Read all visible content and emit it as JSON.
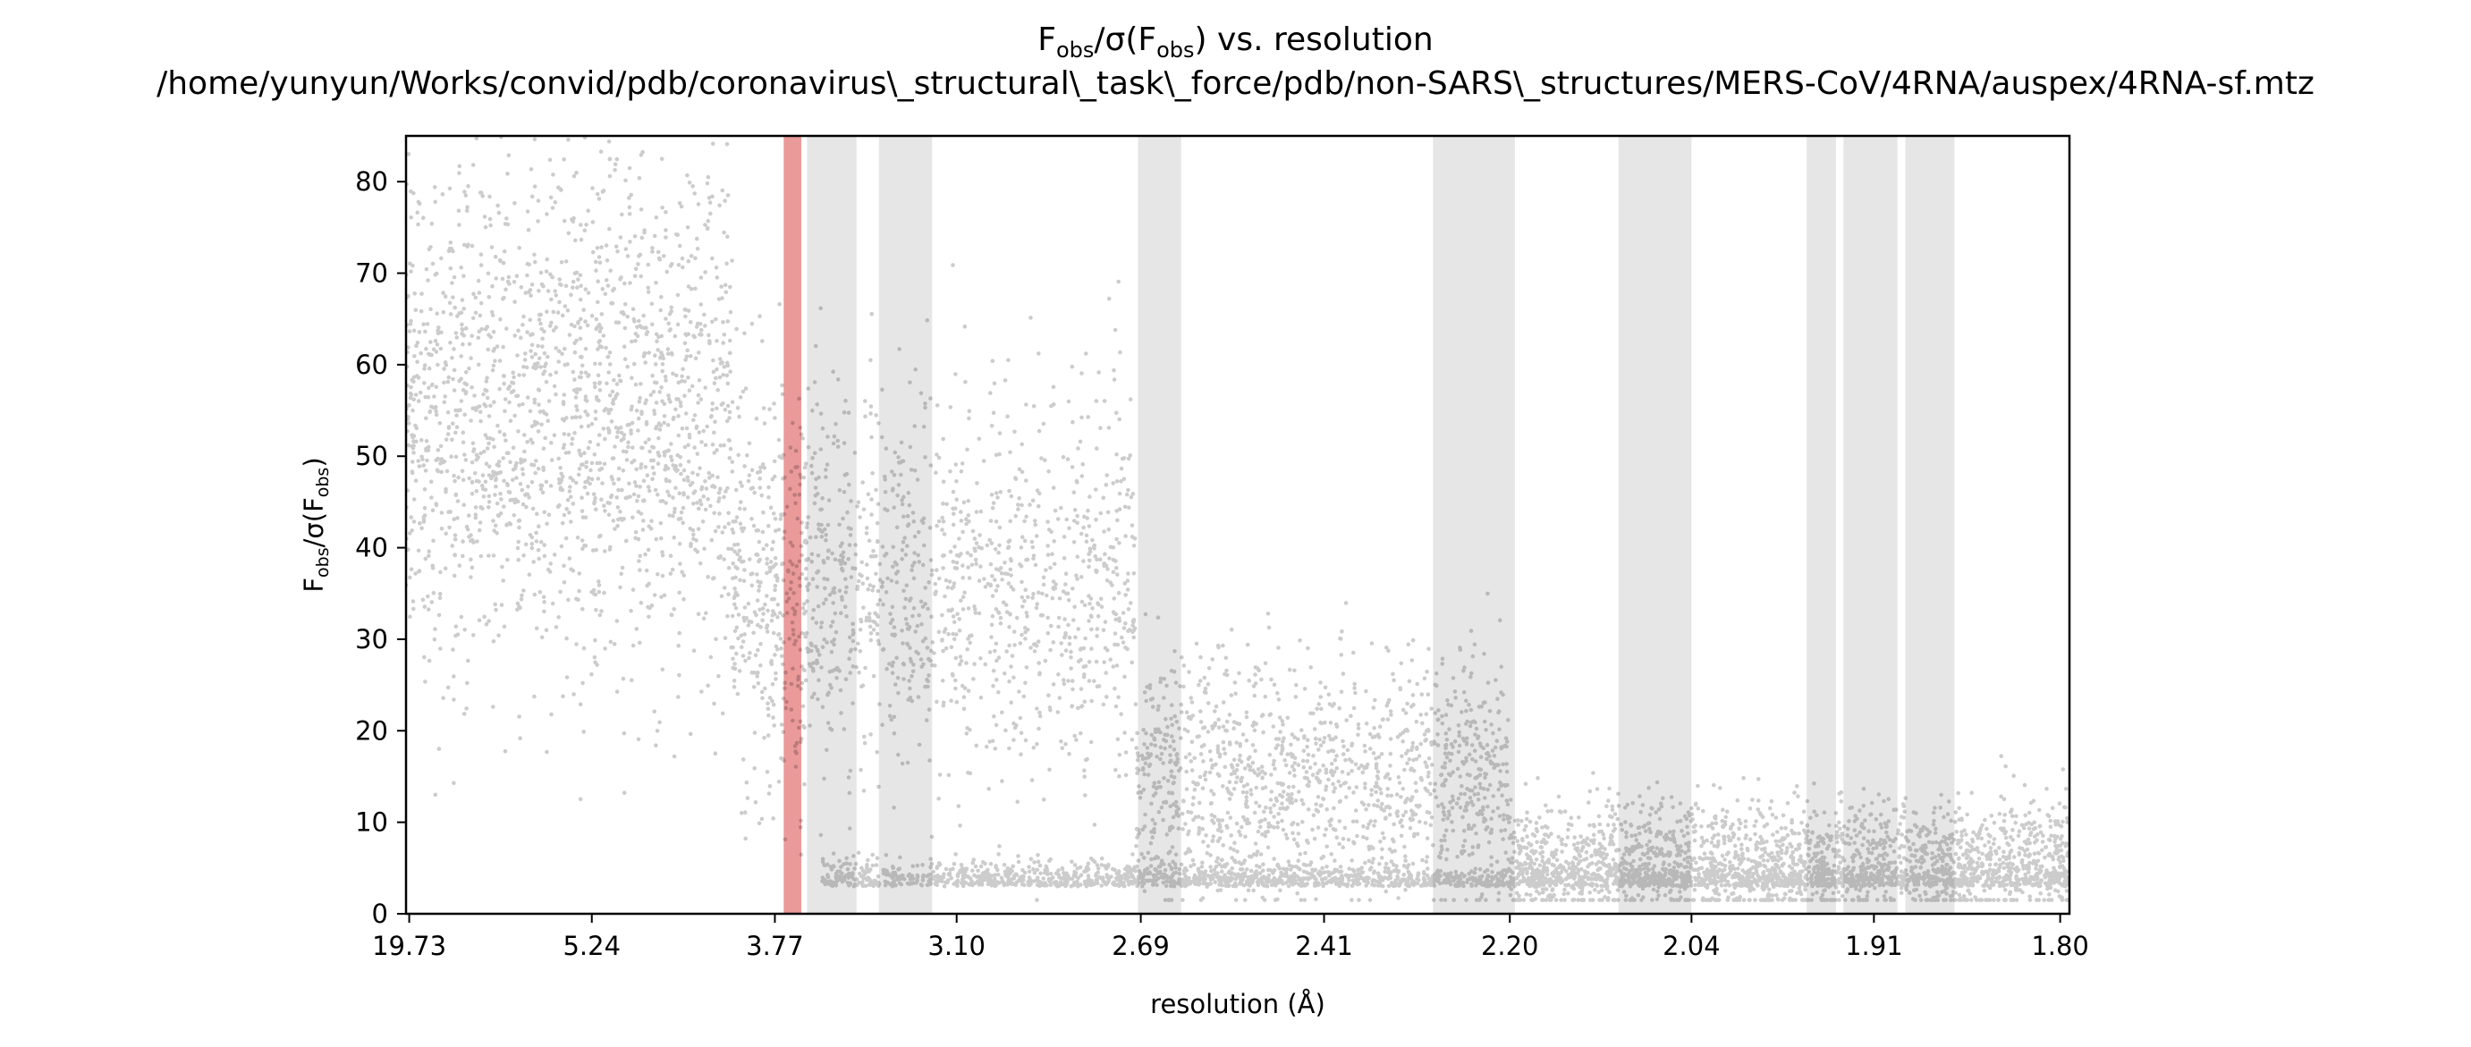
{
  "chart_data": {
    "type": "scatter",
    "title": {
      "line1": {
        "f": "F",
        "sub1": "obs",
        "mid": "/σ(F",
        "sub2": "obs",
        "tail": ") vs. resolution"
      },
      "line2": "/home/yunyun/Works/convid/pdb/coronavirus\\_structural\\_task\\_force/pdb/non-SARS\\_structures/MERS-CoV/4RNA/auspex/4RNA-sf.mtz"
    },
    "xlabel": "resolution (Å)",
    "ylabel": {
      "f": "F",
      "sub1": "obs",
      "mid": "/σ(F",
      "sub2": "obs",
      "tail": ")"
    },
    "x_axis_scale": "1/d^2 (resolution)",
    "xlim_resolution": [
      22.5,
      1.795
    ],
    "x_ticks": [
      "19.73",
      "5.24",
      "3.77",
      "3.10",
      "2.69",
      "2.41",
      "2.20",
      "2.04",
      "1.91",
      "1.80"
    ],
    "ylim": [
      0,
      85
    ],
    "y_ticks": [
      0,
      10,
      20,
      30,
      40,
      50,
      60,
      70,
      80
    ],
    "grid": false,
    "legend": "none",
    "ice_ring_bands_resolution": [
      {
        "from": 3.727,
        "to": 3.645,
        "color": "#eb9a9a",
        "flagged": true
      },
      {
        "from": 3.62,
        "to": 3.42,
        "color": "#e6e6e6"
      },
      {
        "from": 3.34,
        "to": 3.17,
        "color": "#e6e6e6"
      },
      {
        "from": 2.695,
        "to": 2.62,
        "color": "#e6e6e6"
      },
      {
        "from": 2.28,
        "to": 2.195,
        "color": "#e6e6e6"
      },
      {
        "from": 2.1,
        "to": 2.04,
        "color": "#e6e6e6"
      },
      {
        "from": 1.955,
        "to": 1.935,
        "color": "#e6e6e6"
      },
      {
        "from": 1.93,
        "to": 1.895,
        "color": "#e6e6e6"
      },
      {
        "from": 1.89,
        "to": 1.86,
        "color": "#e6e6e6"
      }
    ],
    "point_color": "#000000",
    "point_opacity": 0.2,
    "point_cloud_summary": [
      {
        "resolution_from": 22.5,
        "resolution_to": 4.0,
        "fobs_over_sigma_center": 55,
        "spread": 25
      },
      {
        "resolution_from": 4.0,
        "resolution_to": 2.7,
        "fobs_over_sigma_center": 35,
        "spread": 20
      },
      {
        "resolution_from": 2.7,
        "resolution_to": 2.2,
        "fobs_over_sigma_center": 15,
        "spread": 12
      },
      {
        "resolution_from": 2.2,
        "resolution_to": 1.8,
        "fobs_over_sigma_center": 6,
        "spread": 6
      }
    ]
  }
}
